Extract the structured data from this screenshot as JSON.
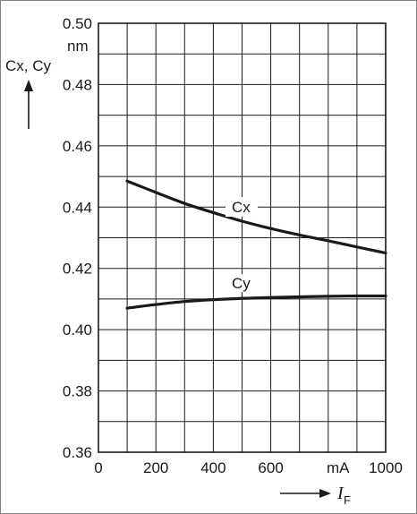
{
  "chart_data": {
    "type": "line",
    "x_unit": "mA",
    "y_unit": "nm",
    "y_axis_label": "Cx, Cy",
    "x_axis_label": "I",
    "x_axis_label_subscript": "F",
    "xlim": [
      0,
      1000
    ],
    "ylim": [
      0.36,
      0.5
    ],
    "grid": true,
    "x_ticks": [
      {
        "value": 0,
        "label": "0"
      },
      {
        "value": 200,
        "label": "200"
      },
      {
        "value": 400,
        "label": "400"
      },
      {
        "value": 600,
        "label": "600"
      },
      {
        "value": 1000,
        "label": "1000"
      }
    ],
    "y_ticks": [
      {
        "value": 0.36,
        "label": "0.36"
      },
      {
        "value": 0.38,
        "label": "0.38"
      },
      {
        "value": 0.4,
        "label": "0.40"
      },
      {
        "value": 0.42,
        "label": "0.42"
      },
      {
        "value": 0.44,
        "label": "0.44"
      },
      {
        "value": 0.46,
        "label": "0.46"
      },
      {
        "value": 0.48,
        "label": "0.48"
      },
      {
        "value": 0.5,
        "label": "0.50"
      }
    ],
    "series": [
      {
        "name": "Cx",
        "x": [
          100,
          200,
          300,
          400,
          500,
          600,
          700,
          800,
          900,
          1000
        ],
        "y": [
          0.4485,
          0.4448,
          0.4412,
          0.4382,
          0.4354,
          0.433,
          0.4309,
          0.429,
          0.427,
          0.425
        ]
      },
      {
        "name": "Cy",
        "x": [
          100,
          200,
          300,
          400,
          500,
          600,
          700,
          800,
          900,
          1000
        ],
        "y": [
          0.407,
          0.4082,
          0.4092,
          0.4098,
          0.4102,
          0.4105,
          0.4107,
          0.4109,
          0.411,
          0.411
        ]
      }
    ]
  }
}
